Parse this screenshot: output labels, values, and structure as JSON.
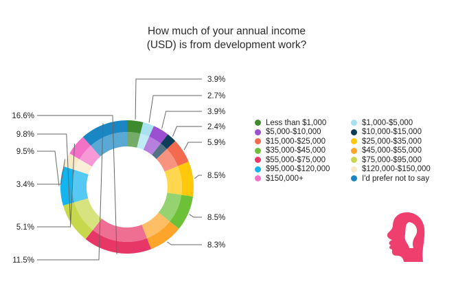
{
  "chart_data": {
    "type": "donut",
    "title_lines": [
      "How much of your annual income",
      "(USD) is from development work?"
    ],
    "unit": "%",
    "slices": [
      {
        "label": "Less than $1,000",
        "value": 3.9,
        "color": "#3f8a2f"
      },
      {
        "label": "$1,000-$5,000",
        "value": 2.7,
        "color": "#a8e2f1"
      },
      {
        "label": "$5,000-$10,000",
        "value": 3.9,
        "color": "#9b4fd1"
      },
      {
        "label": "$10,000-$15,000",
        "value": 2.4,
        "color": "#0f3c57"
      },
      {
        "label": "$15,000-$25,000",
        "value": 5.9,
        "color": "#f46a4e"
      },
      {
        "label": "$25,000-$35,000",
        "value": 8.5,
        "color": "#ffc80a"
      },
      {
        "label": "$35,000-$45,000",
        "value": 8.5,
        "color": "#6cc139"
      },
      {
        "label": "$45,000-$55,000",
        "value": 8.3,
        "color": "#fda52a"
      },
      {
        "label": "$55,000-$75,000",
        "value": 16.6,
        "color": "#e73767"
      },
      {
        "label": "$75,000-$95,000",
        "value": 9.8,
        "color": "#c7d84c"
      },
      {
        "label": "$95,000-$120,000",
        "value": 9.5,
        "color": "#14b4ee"
      },
      {
        "label": "$120,000-$150,000",
        "value": 3.4,
        "color": "#f7eac8"
      },
      {
        "label": "$150,000+",
        "value": 5.1,
        "color": "#f471c8"
      },
      {
        "label": "I'd prefer not to say",
        "value": 11.5,
        "color": "#1b86c4"
      }
    ],
    "value_labels": [
      "3.9%",
      "2.7%",
      "3.9%",
      "2.4%",
      "5.9%",
      "8.5%",
      "8.5%",
      "8.3%",
      "16.6%",
      "9.8%",
      "9.5%",
      "3.4%",
      "5.1%",
      "11.5%"
    ]
  },
  "logo": {
    "icon": "head-profile-icon",
    "color": "#ef3f6f"
  }
}
